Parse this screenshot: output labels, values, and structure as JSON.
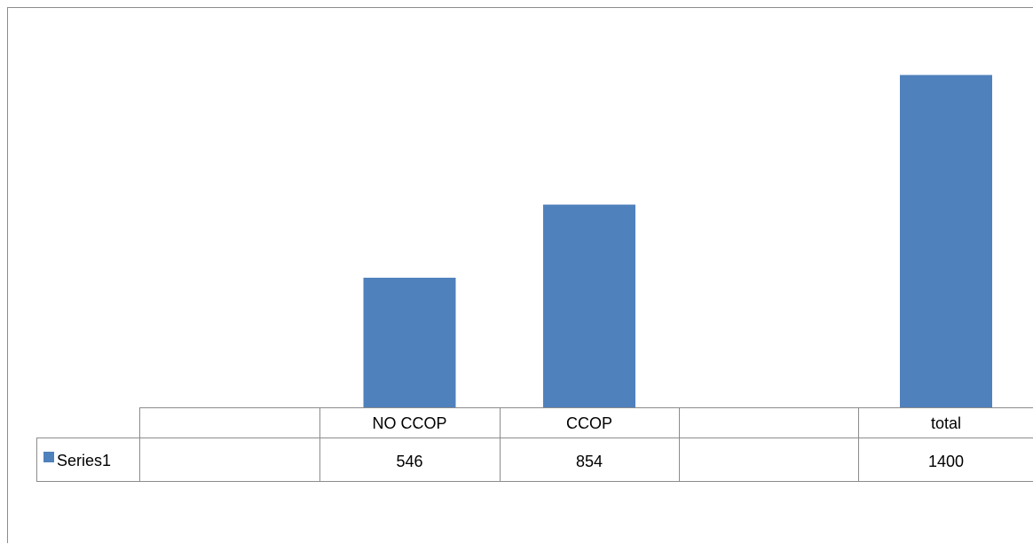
{
  "chart_data": {
    "type": "bar",
    "categories": [
      "",
      "NO CCOP",
      "CCOP",
      "",
      "total"
    ],
    "series": [
      {
        "name": "Series1",
        "values": [
          null,
          546,
          854,
          null,
          1400
        ],
        "display": [
          "",
          "546",
          "854",
          "",
          "1400"
        ],
        "color": "#4f81bd"
      }
    ],
    "ylim": [
      0,
      1600
    ],
    "grid": false,
    "data_table": true,
    "legend_in_table": true
  }
}
